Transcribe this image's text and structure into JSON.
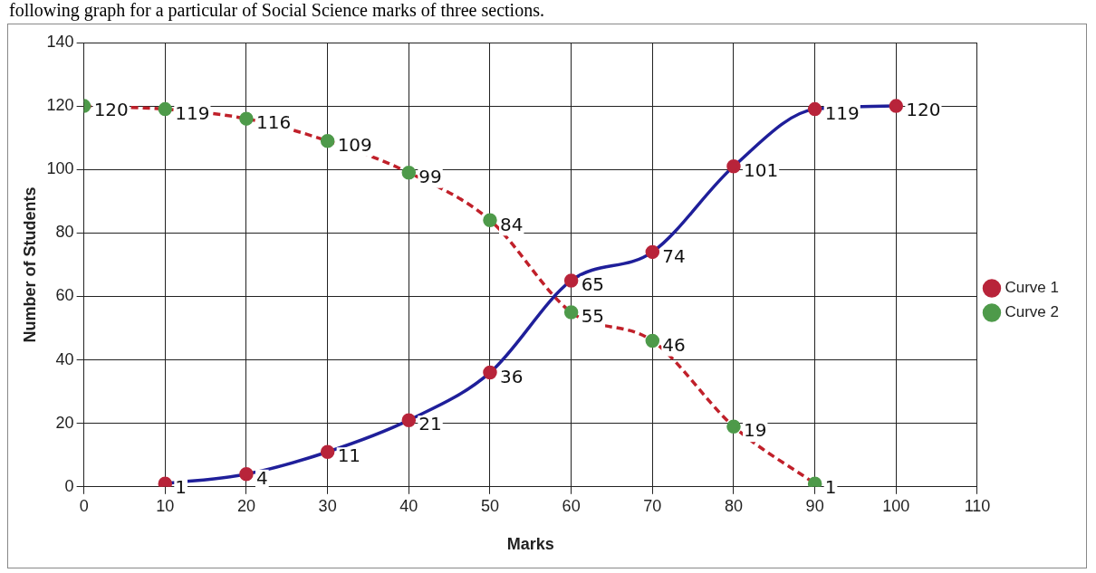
{
  "chart_data": {
    "type": "line",
    "xlabel": "Marks",
    "ylabel": "Number of Students",
    "annotations": [
      "following graph for a particular of Social Science marks of three sections."
    ],
    "series": [
      {
        "name": "Curve 1",
        "color": "#1f1f9a",
        "line_style": "solid",
        "x": [
          10,
          20,
          30,
          40,
          50,
          60,
          70,
          80,
          90,
          100
        ],
        "values": [
          1,
          4,
          11,
          21,
          36,
          65,
          74,
          101,
          119,
          120
        ],
        "colors": [
          "#b8243a",
          "#b8243a",
          "#b8243a",
          "#b8243a",
          "#b8243a",
          "#b8243a",
          "#b8243a",
          "#b8243a",
          "#b8243a",
          "#b8243a"
        ]
      },
      {
        "name": "Curve 2",
        "color": "#c0202a",
        "line_style": "dashed",
        "x": [
          0,
          10,
          20,
          30,
          40,
          50,
          60,
          70,
          80,
          90
        ],
        "values": [
          120,
          119,
          116,
          109,
          99,
          84,
          55,
          46,
          19,
          1
        ],
        "colors": [
          "#4e9a4a",
          "#4e9a4a",
          "#4e9a4a",
          "#4e9a4a",
          "#4e9a4a",
          "#4e9a4a",
          "#4e9a4a",
          "#4e9a4a",
          "#4e9a4a",
          "#4e9a4a"
        ]
      }
    ],
    "xlim": [
      0,
      110
    ],
    "xticks": [
      0,
      10,
      20,
      30,
      40,
      50,
      60,
      70,
      80,
      90,
      100,
      110
    ],
    "ylim": [
      0,
      140
    ],
    "yticks": [
      0,
      20,
      40,
      60,
      80,
      100,
      120,
      140
    ],
    "grid": true,
    "legend": "right",
    "marker": "circle",
    "data_labels": true
  }
}
